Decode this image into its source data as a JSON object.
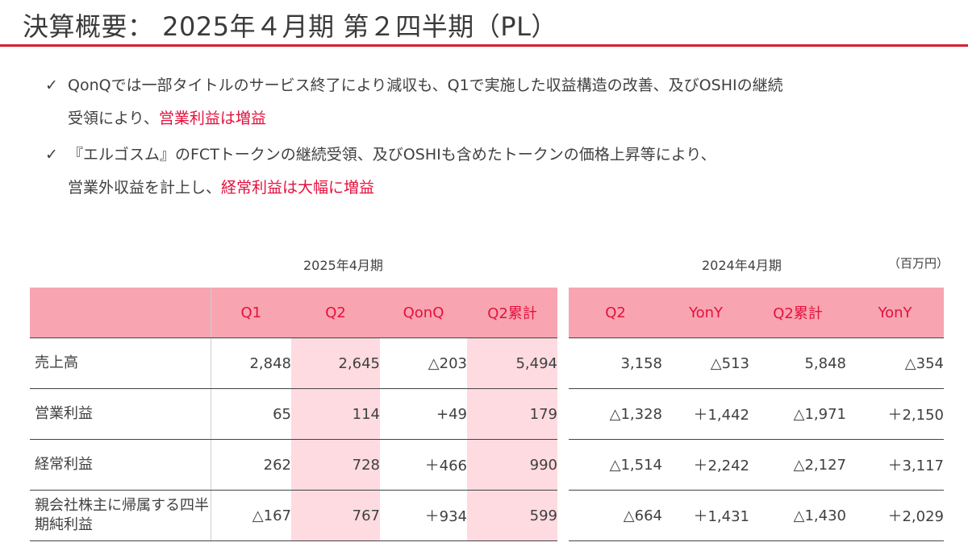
{
  "title": "決算概要： 2025年４月期 第２四半期（PL）",
  "bullets": [
    {
      "check": "✓",
      "text1": "QonQでは一部タイトルのサービス終了により減収も、Q1で実施した収益構造の改善、及びOSHIの継続",
      "text2": "受領により、",
      "highlight": "営業利益は増益"
    },
    {
      "check": "✓",
      "text1": "『エルゴスム』のFCTトークンの継続受領、及びOSHIも含めたトークンの価格上昇等により、",
      "text2": "営業外収益を計上し、",
      "highlight": "経常利益は大幅に増益"
    }
  ],
  "section_2025": "2025年4月期",
  "section_2024": "2024年4月期",
  "unit": "（百万円）",
  "colors": {
    "accent": "#e5103d",
    "header_bg": "#f8a5b1",
    "highlight_bg": "#fddbe1",
    "rule": "#d8202f"
  },
  "table2025": {
    "headers": [
      "",
      "Q1",
      "Q2",
      "QonQ",
      "Q2累計"
    ],
    "rows": [
      {
        "label": "売上高",
        "values": [
          "2,848",
          "2,645",
          "△203",
          "5,494"
        ]
      },
      {
        "label": "営業利益",
        "values": [
          "65",
          "114",
          "+49",
          "179"
        ]
      },
      {
        "label": "経常利益",
        "values": [
          "262",
          "728",
          "＋466",
          "990"
        ]
      },
      {
        "label": "親会社株主に帰属する四半期純利益",
        "values": [
          "△167",
          "767",
          "＋934",
          "599"
        ]
      }
    ]
  },
  "table2024": {
    "headers": [
      "Q2",
      "YonY",
      "Q2累計",
      "YonY"
    ],
    "rows": [
      {
        "values": [
          "3,158",
          "△513",
          "5,848",
          "△354"
        ]
      },
      {
        "values": [
          "△1,328",
          "＋1,442",
          "△1,971",
          "＋2,150"
        ]
      },
      {
        "values": [
          "△1,514",
          "＋2,242",
          "△2,127",
          "＋3,117"
        ]
      },
      {
        "values": [
          "△664",
          "＋1,431",
          "△1,430",
          "＋2,029"
        ]
      }
    ]
  }
}
